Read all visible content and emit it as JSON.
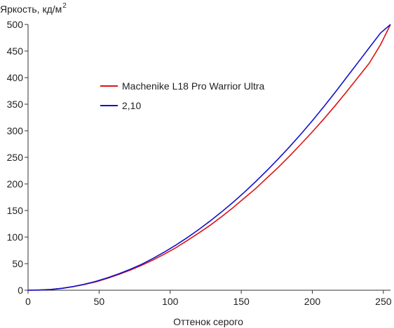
{
  "chart_data": {
    "type": "line",
    "ylabel_main": "Яркость, кд/м",
    "ylabel_sup": "2",
    "xlabel": "Оттенок серого",
    "xlim": [
      0,
      255
    ],
    "ylim": [
      0,
      500
    ],
    "xticks": [
      0,
      50,
      100,
      150,
      200,
      250
    ],
    "yticks": [
      0,
      50,
      100,
      150,
      200,
      250,
      300,
      350,
      400,
      450,
      500
    ],
    "grid": false,
    "legend_position": "top-left",
    "series": [
      {
        "name": "Machenike L18 Pro Warrior Ultra",
        "color": "#dd1111",
        "x": [
          0,
          8,
          16,
          24,
          32,
          40,
          48,
          56,
          64,
          72,
          80,
          88,
          96,
          104,
          112,
          120,
          128,
          136,
          144,
          152,
          160,
          168,
          176,
          184,
          192,
          200,
          208,
          216,
          224,
          232,
          240,
          248,
          255
        ],
        "y": [
          0,
          0.5,
          1.5,
          3.5,
          7,
          11,
          16,
          22.5,
          30,
          38,
          47,
          57,
          68,
          80,
          93.5,
          107.5,
          122,
          138,
          155,
          173,
          191,
          211,
          231,
          252.5,
          275,
          298,
          322,
          347,
          373,
          400,
          427,
          462,
          500
        ]
      },
      {
        "name": "2,10",
        "color": "#1111cc",
        "x": [
          0,
          8,
          16,
          24,
          32,
          40,
          48,
          56,
          64,
          72,
          80,
          88,
          96,
          104,
          112,
          120,
          128,
          136,
          144,
          152,
          160,
          168,
          176,
          184,
          192,
          200,
          208,
          216,
          224,
          232,
          240,
          248,
          255
        ],
        "y": [
          0,
          0.3,
          1.5,
          3.7,
          7,
          11.5,
          17,
          23.5,
          31,
          39.5,
          49,
          60,
          72,
          85,
          99,
          114,
          130,
          147,
          165,
          184,
          204,
          225,
          247,
          270,
          294,
          319,
          345,
          372,
          400,
          428,
          456,
          484,
          500
        ]
      }
    ]
  }
}
